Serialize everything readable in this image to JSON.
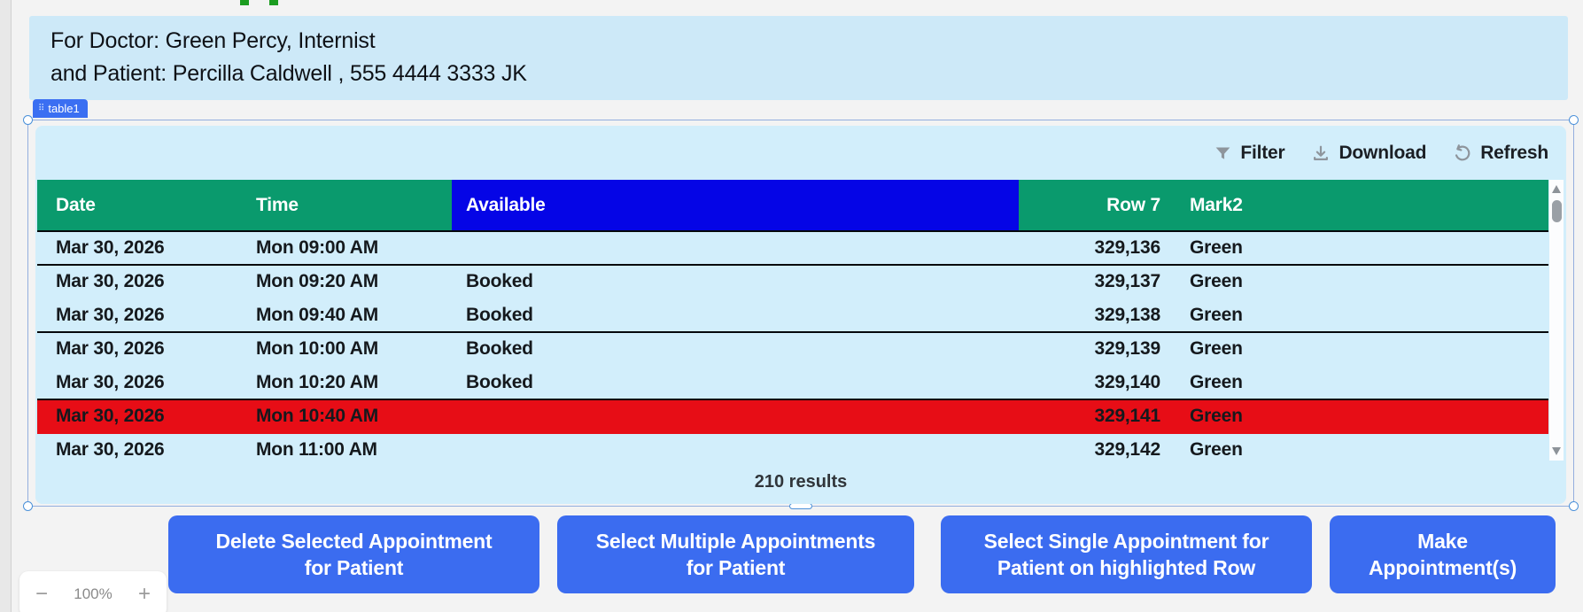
{
  "colors": {
    "header-green": "#0a9a6d",
    "available-blue": "#0505e6",
    "highlight-red": "#e70d16",
    "action-blue": "#3b6cf0",
    "card-blue": "#d2eefb"
  },
  "info_banner": {
    "line1": "For Doctor: Green Percy, Internist",
    "line2": "and Patient: Percilla Caldwell , 555 4444 3333 JK"
  },
  "widget_badge": {
    "label": "table1"
  },
  "toolbar": {
    "filter_label": "Filter",
    "download_label": "Download",
    "refresh_label": "Refresh"
  },
  "table": {
    "columns": [
      {
        "key": "date",
        "label": "Date",
        "color": "#0a9a6d"
      },
      {
        "key": "time",
        "label": "Time",
        "color": "#0a9a6d"
      },
      {
        "key": "available",
        "label": "Available",
        "color": "#0505e6"
      },
      {
        "key": "row7",
        "label": "Row 7",
        "color": "#0a9a6d"
      },
      {
        "key": "mark2",
        "label": "Mark2",
        "color": "#0a9a6d"
      }
    ],
    "rows": [
      {
        "date": "Mar 30, 2026",
        "time": "Mon 09:00 AM",
        "available": "",
        "row7": "329,136",
        "mark2": "Green",
        "highlighted": false
      },
      {
        "date": "Mar 30, 2026",
        "time": "Mon 09:20 AM",
        "available": "Booked",
        "row7": "329,137",
        "mark2": "Green",
        "highlighted": false
      },
      {
        "date": "Mar 30, 2026",
        "time": "Mon 09:40 AM",
        "available": "Booked",
        "row7": "329,138",
        "mark2": "Green",
        "highlighted": false
      },
      {
        "date": "Mar 30, 2026",
        "time": "Mon 10:00 AM",
        "available": "Booked",
        "row7": "329,139",
        "mark2": "Green",
        "highlighted": false
      },
      {
        "date": "Mar 30, 2026",
        "time": "Mon 10:20 AM",
        "available": "Booked",
        "row7": "329,140",
        "mark2": "Green",
        "highlighted": false
      },
      {
        "date": "Mar 30, 2026",
        "time": "Mon 10:40 AM",
        "available": "",
        "row7": "329,141",
        "mark2": "Green",
        "highlighted": true
      },
      {
        "date": "Mar 30, 2026",
        "time": "Mon 11:00 AM",
        "available": "",
        "row7": "329,142",
        "mark2": "Green",
        "highlighted": false
      }
    ],
    "results_label": "210 results"
  },
  "action_buttons": [
    {
      "lines": [
        "Delete Selected Appointment",
        "for Patient"
      ]
    },
    {
      "lines": [
        "Select Multiple Appointments",
        "for Patient"
      ]
    },
    {
      "lines": [
        "Select Single Appointment for",
        "Patient on highlighted Row"
      ]
    },
    {
      "lines": [
        "Make",
        "Appointment(s)"
      ]
    }
  ],
  "zoom_control": {
    "minus": "−",
    "value": "100%",
    "plus": "+"
  }
}
